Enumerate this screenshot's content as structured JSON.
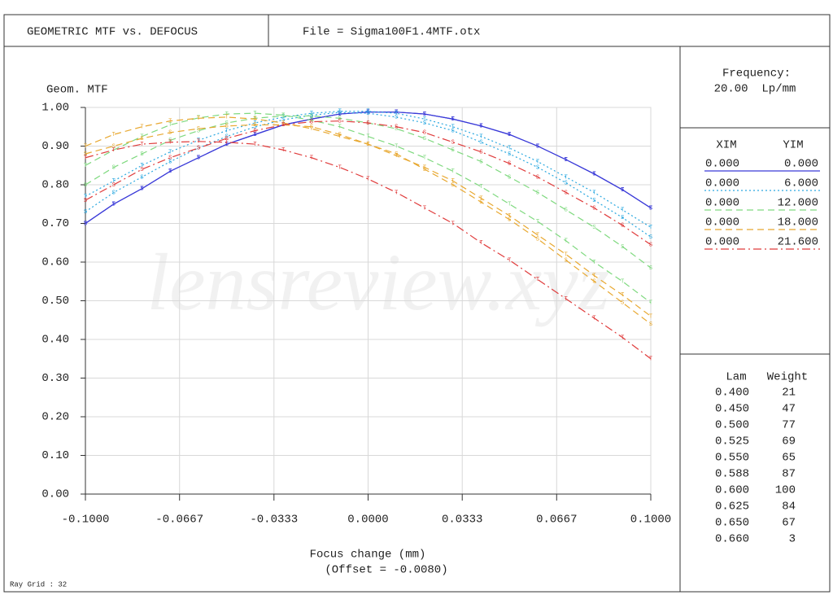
{
  "header": {
    "title": "GEOMETRIC MTF vs. DEFOCUS",
    "file": "File = Sigma100F1.4MTF.otx"
  },
  "chart_data": {
    "type": "line",
    "y_label": "Geom. MTF",
    "x_label": "Focus change (mm)",
    "x_note": "(Offset = -0.0080)",
    "watermark": "lensreview.xyz",
    "x": [
      -0.1,
      -0.09,
      -0.08,
      -0.07,
      -0.06,
      -0.05,
      -0.04,
      -0.03,
      -0.02,
      -0.01,
      0,
      0.01,
      0.02,
      0.03,
      0.04,
      0.05,
      0.06,
      0.07,
      0.08,
      0.09,
      0.1
    ],
    "xlim": [
      -0.1,
      0.1
    ],
    "ylim": [
      0,
      1
    ],
    "xticks": [
      {
        "value": -0.1,
        "label": "-0.1000"
      },
      -0.0667,
      -0.0333,
      {
        "value": 0,
        "label": "0.0000"
      },
      0.0333,
      0.0667,
      {
        "value": 0.1,
        "label": "0.1000"
      }
    ],
    "yticks": [
      {
        "value": 0,
        "label": "0.00"
      },
      {
        "value": 0.1,
        "label": "0.10"
      },
      {
        "value": 0.2,
        "label": "0.20"
      },
      {
        "value": 0.3,
        "label": "0.30"
      },
      {
        "value": 0.4,
        "label": "0.40"
      },
      {
        "value": 0.5,
        "label": "0.50"
      },
      {
        "value": 0.6,
        "label": "0.60"
      },
      {
        "value": 0.7,
        "label": "0.70"
      },
      {
        "value": 0.8,
        "label": "0.80"
      },
      {
        "value": 0.9,
        "label": "0.90"
      },
      {
        "value": 1,
        "label": "1.00"
      }
    ],
    "grid": true,
    "legend_headers": [
      "XIM",
      "YIM"
    ],
    "series": [
      {
        "xim": "0.000",
        "yim": "0.000",
        "color": "#3a3ad8",
        "dash": "solid",
        "curves": [
          {
            "marker": "T",
            "values": [
              0.7,
              0.75,
              0.79,
              0.835,
              0.87,
              0.905,
              0.93,
              0.955,
              0.97,
              0.983,
              0.988,
              0.988,
              0.983,
              0.97,
              0.952,
              0.93,
              0.9,
              0.865,
              0.828,
              0.787,
              0.74
            ]
          },
          {
            "marker": "S",
            "values": [
              0.7,
              0.75,
              0.79,
              0.835,
              0.87,
              0.905,
              0.93,
              0.955,
              0.97,
              0.983,
              0.988,
              0.988,
              0.983,
              0.97,
              0.952,
              0.93,
              0.9,
              0.865,
              0.828,
              0.787,
              0.74
            ]
          }
        ]
      },
      {
        "xim": "0.000",
        "yim": "6.000",
        "color": "#2aa8e0",
        "dash": "dotted",
        "curves": [
          {
            "marker": "T",
            "values": [
              0.77,
              0.81,
              0.85,
              0.885,
              0.915,
              0.94,
              0.96,
              0.975,
              0.985,
              0.99,
              0.99,
              0.985,
              0.97,
              0.95,
              0.925,
              0.895,
              0.86,
              0.82,
              0.78,
              0.735,
              0.69
            ]
          },
          {
            "marker": "S",
            "values": [
              0.73,
              0.78,
              0.82,
              0.86,
              0.895,
              0.925,
              0.95,
              0.968,
              0.98,
              0.987,
              0.985,
              0.975,
              0.96,
              0.94,
              0.91,
              0.88,
              0.845,
              0.805,
              0.76,
              0.715,
              0.665
            ]
          }
        ]
      },
      {
        "xim": "0.000",
        "yim": "12.000",
        "color": "#7fd97f",
        "dash": "dashed",
        "curves": [
          {
            "marker": "T",
            "values": [
              0.85,
              0.89,
              0.925,
              0.955,
              0.973,
              0.983,
              0.985,
              0.98,
              0.967,
              0.95,
              0.925,
              0.9,
              0.87,
              0.835,
              0.795,
              0.75,
              0.705,
              0.655,
              0.6,
              0.55,
              0.495
            ]
          },
          {
            "marker": "S",
            "values": [
              0.8,
              0.845,
              0.88,
              0.915,
              0.94,
              0.96,
              0.972,
              0.978,
              0.978,
              0.972,
              0.96,
              0.945,
              0.92,
              0.89,
              0.86,
              0.82,
              0.78,
              0.735,
              0.69,
              0.64,
              0.585
            ]
          }
        ]
      },
      {
        "xim": "0.000",
        "yim": "18.000",
        "color": "#e8a830",
        "dash": "dashed",
        "curves": [
          {
            "marker": "T",
            "values": [
              0.9,
              0.93,
              0.95,
              0.965,
              0.972,
              0.975,
              0.97,
              0.96,
              0.945,
              0.925,
              0.905,
              0.875,
              0.845,
              0.81,
              0.765,
              0.72,
              0.67,
              0.62,
              0.565,
              0.515,
              0.46
            ]
          },
          {
            "marker": "S",
            "values": [
              0.88,
              0.9,
              0.92,
              0.935,
              0.945,
              0.952,
              0.955,
              0.955,
              0.95,
              0.93,
              0.905,
              0.88,
              0.84,
              0.8,
              0.755,
              0.71,
              0.66,
              0.605,
              0.55,
              0.495,
              0.44
            ]
          }
        ]
      },
      {
        "xim": "0.000",
        "yim": "21.600",
        "color": "#e03c3c",
        "dash": "dashdot",
        "curves": [
          {
            "marker": "T",
            "values": [
              0.87,
              0.89,
              0.905,
              0.91,
              0.912,
              0.91,
              0.905,
              0.89,
              0.87,
              0.845,
              0.815,
              0.78,
              0.74,
              0.7,
              0.65,
              0.605,
              0.555,
              0.505,
              0.455,
              0.405,
              0.35
            ]
          },
          {
            "marker": "S",
            "values": [
              0.76,
              0.8,
              0.84,
              0.87,
              0.895,
              0.92,
              0.94,
              0.955,
              0.963,
              0.965,
              0.96,
              0.95,
              0.935,
              0.91,
              0.885,
              0.855,
              0.82,
              0.78,
              0.74,
              0.695,
              0.645
            ]
          }
        ]
      }
    ]
  },
  "frequency": {
    "label": "Frequency:",
    "value": "20.00  Lp/mm"
  },
  "wavelengths": {
    "headers": [
      "Lam",
      "Weight"
    ],
    "rows": [
      [
        "0.400",
        "21"
      ],
      [
        "0.450",
        "47"
      ],
      [
        "0.500",
        "77"
      ],
      [
        "0.525",
        "69"
      ],
      [
        "0.550",
        "65"
      ],
      [
        "0.588",
        "87"
      ],
      [
        "0.600",
        "100"
      ],
      [
        "0.625",
        "84"
      ],
      [
        "0.650",
        "67"
      ],
      [
        "0.660",
        "3"
      ]
    ]
  },
  "footer": "Ray Grid : 32"
}
